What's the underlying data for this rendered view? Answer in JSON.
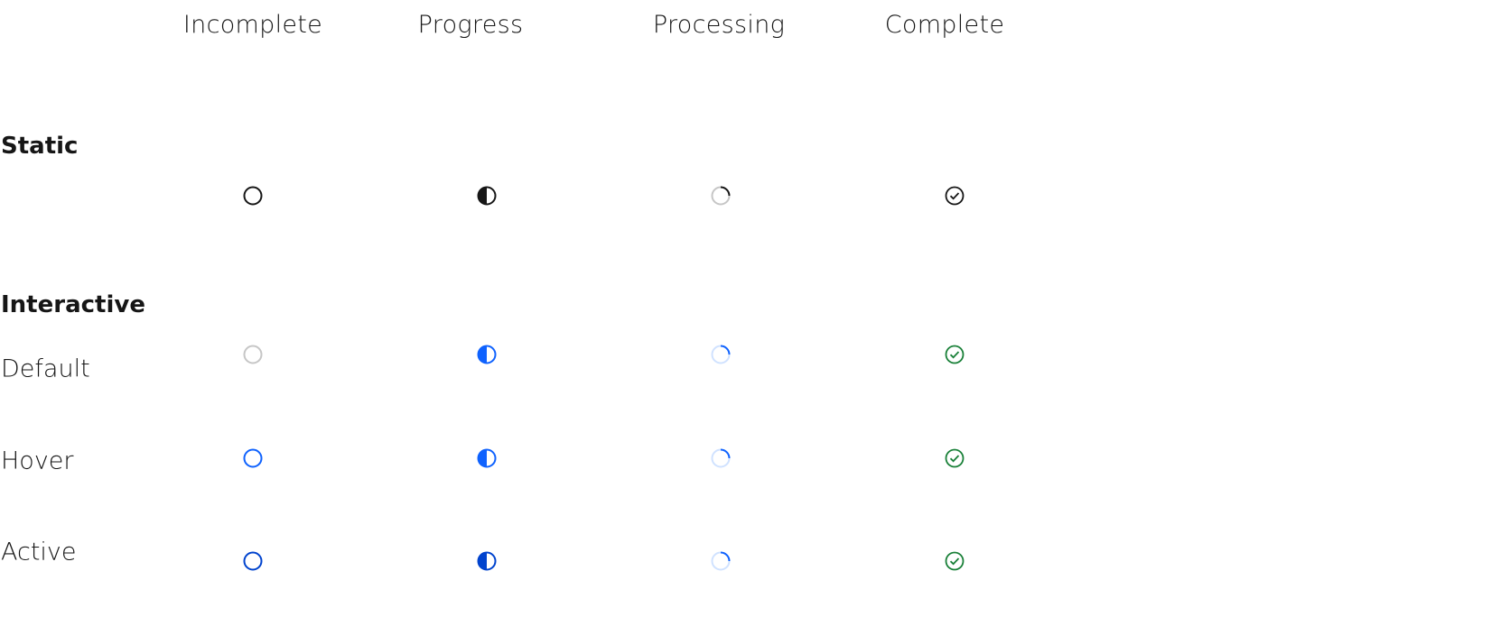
{
  "columns": [
    "Incomplete",
    "Progress",
    "Processing",
    "Complete"
  ],
  "sections": {
    "static": "Static",
    "interactive": "Interactive"
  },
  "states": [
    "Default",
    "Hover",
    "Active"
  ],
  "colors": {
    "text": "#161616",
    "disabled_gray": "#c6c6c6",
    "blue": "#0f62fe",
    "blue_active": "#0043ce",
    "blue_light": "#d0e2ff",
    "green": "#198038"
  },
  "icons": [
    "circle-outline-icon",
    "half-circle-icon",
    "processing-arc-icon",
    "checkmark-circle-icon"
  ]
}
